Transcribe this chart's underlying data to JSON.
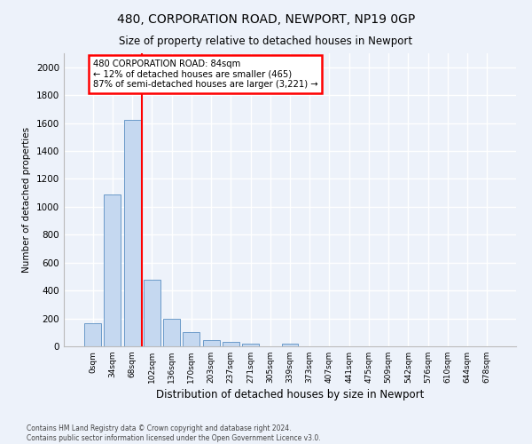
{
  "title": "480, CORPORATION ROAD, NEWPORT, NP19 0GP",
  "subtitle": "Size of property relative to detached houses in Newport",
  "xlabel": "Distribution of detached houses by size in Newport",
  "ylabel": "Number of detached properties",
  "bar_color": "#c5d8f0",
  "bar_edge_color": "#5a8fc2",
  "categories": [
    "0sqm",
    "34sqm",
    "68sqm",
    "102sqm",
    "136sqm",
    "170sqm",
    "203sqm",
    "237sqm",
    "271sqm",
    "305sqm",
    "339sqm",
    "373sqm",
    "407sqm",
    "441sqm",
    "475sqm",
    "509sqm",
    "542sqm",
    "576sqm",
    "610sqm",
    "644sqm",
    "678sqm"
  ],
  "values": [
    165,
    1090,
    1625,
    480,
    200,
    100,
    45,
    35,
    20,
    0,
    20,
    0,
    0,
    0,
    0,
    0,
    0,
    0,
    0,
    0,
    0
  ],
  "vline_x": 2.47,
  "vline_color": "red",
  "annotation_line1": "480 CORPORATION ROAD: 84sqm",
  "annotation_line2": "← 12% of detached houses are smaller (465)",
  "annotation_line3": "87% of semi-detached houses are larger (3,221) →",
  "ylim": [
    0,
    2100
  ],
  "yticks": [
    0,
    200,
    400,
    600,
    800,
    1000,
    1200,
    1400,
    1600,
    1800,
    2000
  ],
  "footer_line1": "Contains HM Land Registry data © Crown copyright and database right 2024.",
  "footer_line2": "Contains public sector information licensed under the Open Government Licence v3.0.",
  "bg_color": "#edf2fa",
  "fig_bg_color": "#edf2fa",
  "grid_color": "#ffffff"
}
